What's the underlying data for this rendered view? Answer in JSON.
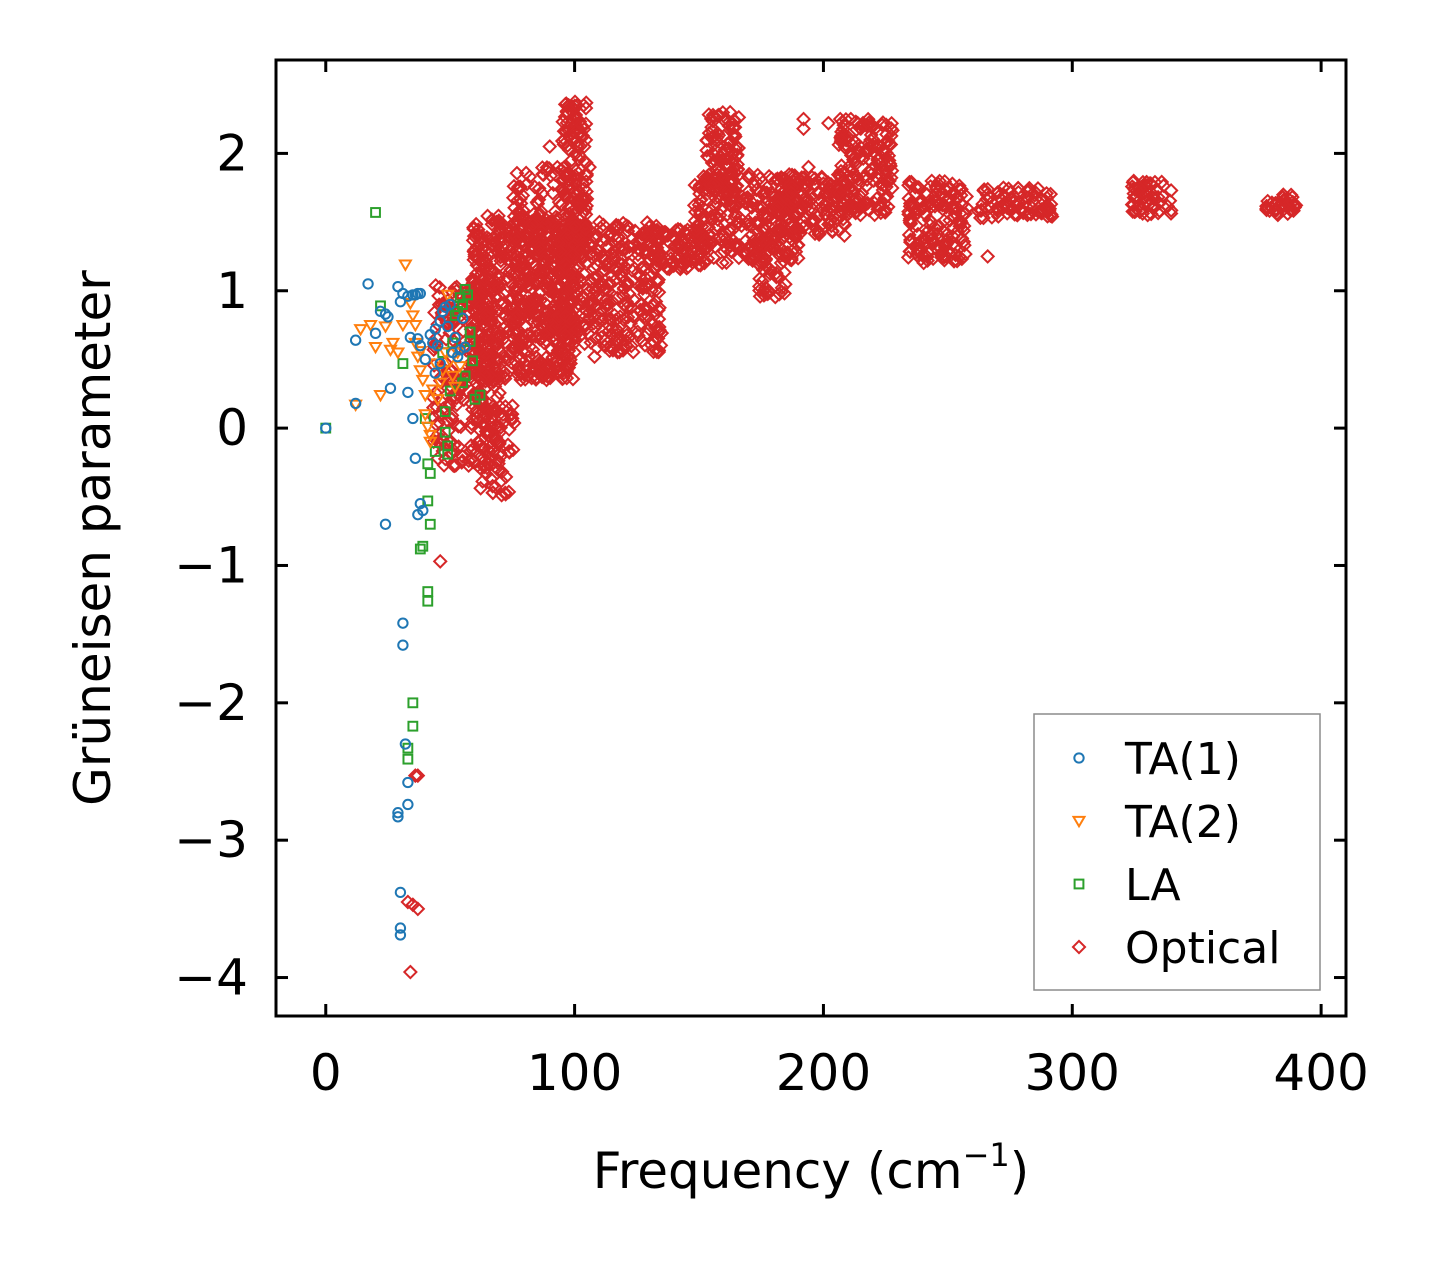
{
  "chart_data": {
    "type": "scatter",
    "title": "",
    "xlabel": "Frequency (cm",
    "xlabel_sup": "−1",
    "xlabel_close": ")",
    "ylabel": "Grüneisen parameter",
    "xlim": [
      -20,
      410
    ],
    "ylim": [
      -4.28,
      2.68
    ],
    "xticks": [
      0,
      100,
      200,
      300,
      400
    ],
    "xtick_labels": [
      "0",
      "100",
      "200",
      "300",
      "400"
    ],
    "yticks": [
      -4,
      -3,
      -2,
      -1,
      0,
      1,
      2
    ],
    "ytick_labels": [
      "−4",
      "−3",
      "−2",
      "−1",
      "0",
      "1",
      "2"
    ],
    "legend_position": "bottom-right",
    "series": [
      {
        "name": "TA(1)",
        "marker": "circle",
        "color": "#1f77b4",
        "points": [
          [
            0,
            0
          ],
          [
            12,
            0.18
          ],
          [
            12,
            0.64
          ],
          [
            17,
            1.05
          ],
          [
            20,
            0.69
          ],
          [
            22,
            0.85
          ],
          [
            24,
            0.83
          ],
          [
            25,
            0.81
          ],
          [
            26,
            0.29
          ],
          [
            29,
            1.03
          ],
          [
            30,
            0.92
          ],
          [
            31,
            0.98
          ],
          [
            33,
            0.96
          ],
          [
            35,
            0.97
          ],
          [
            36,
            0.97
          ],
          [
            37,
            0.98
          ],
          [
            38,
            0.98
          ],
          [
            33,
            0.26
          ],
          [
            34,
            0.66
          ],
          [
            35,
            0.07
          ],
          [
            37,
            0.65
          ],
          [
            38,
            0.6
          ],
          [
            40,
            0.5
          ],
          [
            42,
            0.68
          ],
          [
            43,
            0.62
          ],
          [
            44,
            0.72
          ],
          [
            45,
            0.6
          ],
          [
            46,
            0.78
          ],
          [
            47,
            0.85
          ],
          [
            48,
            0.88
          ],
          [
            49,
            0.74
          ],
          [
            50,
            0.9
          ],
          [
            51,
            0.55
          ],
          [
            52,
            0.66
          ],
          [
            53,
            0.52
          ],
          [
            54,
            0.57
          ],
          [
            55,
            0.8
          ],
          [
            56,
            0.59
          ],
          [
            44,
            0.4
          ],
          [
            46,
            0.47
          ],
          [
            36,
            -0.22
          ],
          [
            38,
            -0.55
          ],
          [
            39,
            -0.6
          ],
          [
            37,
            -0.63
          ],
          [
            24,
            -0.7
          ],
          [
            31,
            -1.42
          ],
          [
            31,
            -1.58
          ],
          [
            32,
            -2.3
          ],
          [
            33,
            -2.58
          ],
          [
            33,
            -2.74
          ],
          [
            29,
            -2.8
          ],
          [
            29,
            -2.83
          ],
          [
            30,
            -3.38
          ],
          [
            30,
            -3.64
          ],
          [
            30,
            -3.69
          ]
        ]
      },
      {
        "name": "TA(2)",
        "marker": "triangle-down",
        "color": "#ff7f0e",
        "points": [
          [
            12,
            0.17
          ],
          [
            14,
            0.72
          ],
          [
            18,
            0.75
          ],
          [
            20,
            0.59
          ],
          [
            22,
            0.24
          ],
          [
            24,
            0.74
          ],
          [
            26,
            0.57
          ],
          [
            27,
            0.62
          ],
          [
            29,
            0.55
          ],
          [
            31,
            0.75
          ],
          [
            32,
            1.19
          ],
          [
            34,
            0.91
          ],
          [
            35,
            0.82
          ],
          [
            36,
            0.75
          ],
          [
            37,
            0.52
          ],
          [
            38,
            0.42
          ],
          [
            39,
            0.35
          ],
          [
            40,
            0.1
          ],
          [
            41,
            0.01
          ],
          [
            42,
            -0.05
          ],
          [
            43,
            0.28
          ],
          [
            44,
            0.47
          ],
          [
            45,
            0.21
          ],
          [
            46,
            0.33
          ],
          [
            47,
            0.42
          ],
          [
            48,
            0.55
          ],
          [
            49,
            0.97
          ],
          [
            50,
            0.49
          ],
          [
            51,
            0.38
          ],
          [
            52,
            0.3
          ],
          [
            53,
            0.55
          ],
          [
            54,
            0.45
          ],
          [
            42,
            -0.1
          ],
          [
            40,
            0.24
          ],
          [
            36,
            0.62
          ],
          [
            38,
            0.56
          ]
        ]
      },
      {
        "name": "LA",
        "marker": "square",
        "color": "#2ca02c",
        "points": [
          [
            0,
            0
          ],
          [
            20,
            1.57
          ],
          [
            22,
            0.89
          ],
          [
            31,
            0.47
          ],
          [
            38,
            -0.88
          ],
          [
            39,
            -0.86
          ],
          [
            40,
            0.07
          ],
          [
            41,
            -0.26
          ],
          [
            41,
            -0.53
          ],
          [
            41,
            -1.19
          ],
          [
            41,
            -1.26
          ],
          [
            42,
            -0.7
          ],
          [
            42,
            -0.33
          ],
          [
            44,
            -0.17
          ],
          [
            35,
            -2.0
          ],
          [
            35,
            -2.17
          ],
          [
            33,
            -2.33
          ],
          [
            33,
            -2.41
          ],
          [
            48,
            -0.03
          ],
          [
            49,
            -0.13
          ],
          [
            49,
            -0.19
          ],
          [
            48,
            0.12
          ],
          [
            50,
            0.27
          ],
          [
            51,
            0.62
          ],
          [
            52,
            0.82
          ],
          [
            53,
            0.85
          ],
          [
            54,
            0.95
          ],
          [
            55,
            0.9
          ],
          [
            56,
            1.01
          ],
          [
            57,
            0.97
          ],
          [
            58,
            0.7
          ],
          [
            59,
            0.49
          ],
          [
            60,
            0.21
          ],
          [
            62,
            0.24
          ],
          [
            47,
            0.55
          ],
          [
            55,
            0.33
          ],
          [
            56,
            0.38
          ],
          [
            58,
            0.63
          ]
        ]
      },
      {
        "name": "Optical",
        "marker": "diamond",
        "color": "#d62728",
        "clusters": [
          {
            "x": [
              43,
              70
            ],
            "y": [
              -0.28,
              1.05
            ],
            "n": 260
          },
          {
            "x": [
              58,
              100
            ],
            "y": [
              0.35,
              1.55
            ],
            "n": 600
          },
          {
            "x": [
              62,
              76
            ],
            "y": [
              -0.5,
              0.2
            ],
            "n": 70
          },
          {
            "x": [
              75,
              102
            ],
            "y": [
              0.8,
              1.9
            ],
            "n": 180
          },
          {
            "x": [
              95,
              105
            ],
            "y": [
              1.3,
              2.38
            ],
            "n": 130
          },
          {
            "x": [
              92,
              135
            ],
            "y": [
              0.55,
              1.5
            ],
            "n": 380
          },
          {
            "x": [
              130,
              152
            ],
            "y": [
              1.15,
              1.45
            ],
            "n": 100
          },
          {
            "x": [
              148,
              190
            ],
            "y": [
              1.2,
              1.85
            ],
            "n": 280
          },
          {
            "x": [
              153,
              166
            ],
            "y": [
              1.7,
              2.3
            ],
            "n": 100
          },
          {
            "x": [
              172,
              185
            ],
            "y": [
              0.95,
              1.55
            ],
            "n": 60
          },
          {
            "x": [
              180,
              210
            ],
            "y": [
              1.4,
              1.85
            ],
            "n": 150
          },
          {
            "x": [
              206,
              228
            ],
            "y": [
              1.55,
              2.25
            ],
            "n": 180
          },
          {
            "x": [
              234,
              258
            ],
            "y": [
              1.2,
              1.8
            ],
            "n": 160
          },
          {
            "x": [
              262,
              292
            ],
            "y": [
              1.53,
              1.75
            ],
            "n": 90
          },
          {
            "x": [
              324,
              340
            ],
            "y": [
              1.55,
              1.8
            ],
            "n": 60
          },
          {
            "x": [
              378,
              390
            ],
            "y": [
              1.55,
              1.7
            ],
            "n": 40
          }
        ],
        "points": [
          [
            36,
            -2.53
          ],
          [
            37,
            -2.53
          ],
          [
            33,
            -3.45
          ],
          [
            35,
            -3.47
          ],
          [
            37,
            -3.5
          ],
          [
            34,
            -3.96
          ],
          [
            46,
            -0.97
          ],
          [
            100,
            0.65
          ],
          [
            108,
            0.52
          ],
          [
            112,
            0.6
          ],
          [
            90,
            2.05
          ],
          [
            97,
            2.3
          ],
          [
            101,
            2.35
          ],
          [
            158,
            2.28
          ],
          [
            162,
            2.2
          ],
          [
            165,
            2.05
          ],
          [
            192,
            2.25
          ],
          [
            192,
            2.18
          ],
          [
            194,
            1.9
          ],
          [
            202,
            2.22
          ],
          [
            211,
            2.25
          ],
          [
            213,
            2.23
          ],
          [
            215,
            2.18
          ],
          [
            200,
            1.78
          ],
          [
            176,
            1.0
          ],
          [
            178,
            1.0
          ],
          [
            266,
            1.25
          ],
          [
            182,
            1.1
          ],
          [
            126,
            0.75
          ],
          [
            130,
            0.72
          ],
          [
            122,
            1.32
          ],
          [
            133,
            1.43
          ],
          [
            106,
            1.9
          ],
          [
            102,
            1.6
          ],
          [
            97,
            1.55
          ],
          [
            110,
            1.5
          ],
          [
            118,
            1.45
          ]
        ]
      }
    ]
  }
}
